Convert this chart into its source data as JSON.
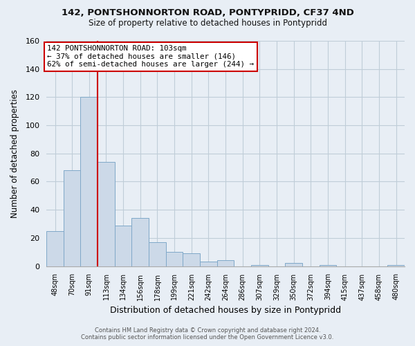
{
  "title": "142, PONTSHONNORTON ROAD, PONTYPRIDD, CF37 4ND",
  "subtitle": "Size of property relative to detached houses in Pontypridd",
  "xlabel": "Distribution of detached houses by size in Pontypridd",
  "ylabel": "Number of detached properties",
  "footer_line1": "Contains HM Land Registry data © Crown copyright and database right 2024.",
  "footer_line2": "Contains public sector information licensed under the Open Government Licence v3.0.",
  "bin_labels": [
    "48sqm",
    "70sqm",
    "91sqm",
    "113sqm",
    "134sqm",
    "156sqm",
    "178sqm",
    "199sqm",
    "221sqm",
    "242sqm",
    "264sqm",
    "286sqm",
    "307sqm",
    "329sqm",
    "350sqm",
    "372sqm",
    "394sqm",
    "415sqm",
    "437sqm",
    "458sqm",
    "480sqm"
  ],
  "bar_heights": [
    25,
    68,
    120,
    74,
    29,
    34,
    17,
    10,
    9,
    3,
    4,
    0,
    1,
    0,
    2,
    0,
    1,
    0,
    0,
    0,
    1
  ],
  "bar_color": "#ccd9e8",
  "bar_edge_color": "#7fa8c8",
  "vline_color": "#cc0000",
  "vline_x_index": 2,
  "ylim": [
    0,
    160
  ],
  "yticks": [
    0,
    20,
    40,
    60,
    80,
    100,
    120,
    140,
    160
  ],
  "annotation_text_line1": "142 PONTSHONNORTON ROAD: 103sqm",
  "annotation_text_line2": "← 37% of detached houses are smaller (146)",
  "annotation_text_line3": "62% of semi-detached houses are larger (244) →",
  "background_color": "#e8eef5",
  "plot_bg_color": "#e8eef5",
  "grid_color": "#c0cdd8"
}
